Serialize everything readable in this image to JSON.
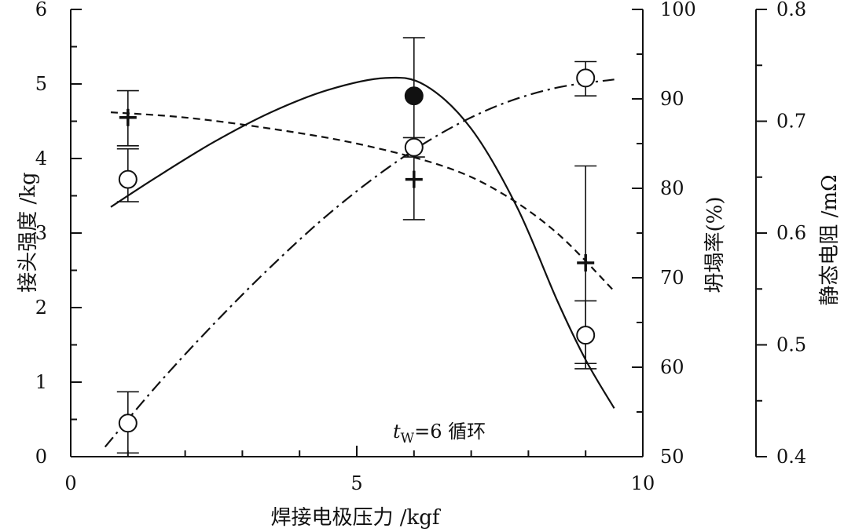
{
  "chart_data": {
    "type": "line",
    "xlabel": "焊接电极压力 /kgf",
    "xlim": [
      0,
      10
    ],
    "x_ticks": [
      "0",
      "5",
      "10"
    ],
    "axes": {
      "left": {
        "label": "接头强度 /kg",
        "lim": [
          0,
          6
        ],
        "ticks": [
          "0",
          "1",
          "2",
          "3",
          "4",
          "5",
          "6"
        ]
      },
      "right1": {
        "label": "坍塌率(%)",
        "lim": [
          50,
          100
        ],
        "ticks": [
          "50",
          "60",
          "70",
          "80",
          "90",
          "100"
        ]
      },
      "right2": {
        "label": "静态电阻 /mΩ",
        "lim": [
          0.4,
          0.8
        ],
        "ticks": [
          "0.4",
          "0.5",
          "0.6",
          "0.7",
          "0.8"
        ]
      }
    },
    "annotation": {
      "italic": "t",
      "sub": "W",
      "rest": "=6 循环"
    },
    "grid": false,
    "series": [
      {
        "marker": "open-circle",
        "axis": "left",
        "line": "solid",
        "points": [
          {
            "x": 1,
            "y": 3.72,
            "err": [
              3.42,
              4.13
            ]
          },
          {
            "x": 6,
            "y": 4.15,
            "err": [
              4.02,
              4.28
            ]
          },
          {
            "x": 9,
            "y": 1.63,
            "err": [
              1.18,
              2.09
            ]
          }
        ],
        "fit": [
          [
            0.7,
            3.35
          ],
          [
            1.5,
            3.75
          ],
          [
            2.5,
            4.22
          ],
          [
            3.5,
            4.62
          ],
          [
            4.5,
            4.92
          ],
          [
            5.5,
            5.08
          ],
          [
            6.2,
            4.98
          ],
          [
            7.0,
            4.4
          ],
          [
            7.8,
            3.35
          ],
          [
            8.5,
            2.1
          ],
          [
            9.0,
            1.3
          ],
          [
            9.5,
            0.65
          ]
        ]
      },
      {
        "marker": "open-circle",
        "axis": "left",
        "line": "dash-dot",
        "points": [
          {
            "x": 1,
            "y": 0.45,
            "err": [
              0.05,
              0.87
            ]
          },
          {
            "x": 9,
            "y": 5.08,
            "err": [
              4.84,
              5.3
            ]
          }
        ],
        "fit": [
          [
            0.6,
            0.13
          ],
          [
            1.5,
            0.95
          ],
          [
            2.5,
            1.78
          ],
          [
            3.5,
            2.55
          ],
          [
            4.5,
            3.25
          ],
          [
            5.5,
            3.85
          ],
          [
            6.5,
            4.35
          ],
          [
            7.5,
            4.72
          ],
          [
            8.5,
            4.95
          ],
          [
            9.5,
            5.06
          ]
        ]
      },
      {
        "marker": "filled-circle",
        "axis": "left",
        "points": [
          {
            "x": 6,
            "y": 4.84
          }
        ]
      },
      {
        "marker": "plus",
        "axis": "left",
        "line": "dashed",
        "points": [
          {
            "x": 1,
            "y": 4.55,
            "err": [
              4.17,
              4.91
            ]
          },
          {
            "x": 6,
            "y": 3.72,
            "err": [
              3.18,
              5.62
            ]
          },
          {
            "x": 9,
            "y": 2.6,
            "err": [
              1.25,
              3.9
            ]
          }
        ],
        "fit": [
          [
            0.7,
            4.62
          ],
          [
            2.0,
            4.55
          ],
          [
            3.5,
            4.4
          ],
          [
            5.0,
            4.2
          ],
          [
            6.5,
            3.9
          ],
          [
            7.5,
            3.55
          ],
          [
            8.5,
            3.0
          ],
          [
            9.5,
            2.22
          ]
        ]
      }
    ]
  }
}
